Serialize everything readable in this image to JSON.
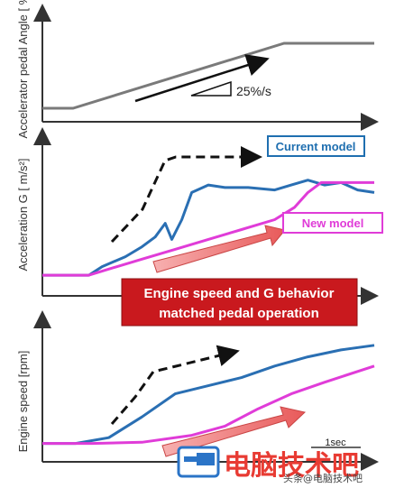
{
  "chart_data": [
    {
      "type": "line",
      "ylabel": "Accelerator pedal Angle [ % ]",
      "annotations": [
        {
          "text": "25%/s"
        }
      ],
      "series": [
        {
          "values": [
            [
              0,
              0
            ],
            [
              0.2,
              0
            ],
            [
              0.73,
              1
            ],
            [
              1,
              1
            ]
          ]
        }
      ]
    },
    {
      "type": "line",
      "ylabel": "Acceleration G [ m/s²]",
      "legend": [
        {
          "label": "Current model",
          "color": "#1f6fb0"
        },
        {
          "label": "New model",
          "color": "#e03cd8"
        }
      ],
      "series": [
        {
          "name": "Current model",
          "color": "#2a6fb3",
          "values": [
            [
              0,
              0.05
            ],
            [
              0.14,
              0.05
            ],
            [
              0.18,
              0.12
            ],
            [
              0.25,
              0.2
            ],
            [
              0.3,
              0.28
            ],
            [
              0.34,
              0.36
            ],
            [
              0.37,
              0.47
            ],
            [
              0.39,
              0.34
            ],
            [
              0.42,
              0.5
            ],
            [
              0.45,
              0.72
            ],
            [
              0.5,
              0.78
            ],
            [
              0.55,
              0.76
            ],
            [
              0.62,
              0.76
            ],
            [
              0.7,
              0.74
            ],
            [
              0.75,
              0.78
            ],
            [
              0.8,
              0.82
            ],
            [
              0.85,
              0.78
            ],
            [
              0.9,
              0.8
            ],
            [
              0.95,
              0.74
            ],
            [
              1,
              0.72
            ]
          ]
        },
        {
          "name": "New model",
          "color": "#e03cd8",
          "values": [
            [
              0,
              0.05
            ],
            [
              0.14,
              0.05
            ],
            [
              0.2,
              0.1
            ],
            [
              0.3,
              0.18
            ],
            [
              0.4,
              0.26
            ],
            [
              0.5,
              0.34
            ],
            [
              0.6,
              0.42
            ],
            [
              0.7,
              0.5
            ],
            [
              0.76,
              0.6
            ],
            [
              0.8,
              0.72
            ],
            [
              0.84,
              0.8
            ],
            [
              0.9,
              0.8
            ],
            [
              1,
              0.8
            ]
          ]
        }
      ]
    },
    {
      "type": "line",
      "ylabel": "Engine speed [rpm]",
      "annotations": [
        {
          "text": "1sec"
        }
      ],
      "series": [
        {
          "name": "Current model",
          "color": "#2a6fb3",
          "values": [
            [
              0,
              0.05
            ],
            [
              0.1,
              0.05
            ],
            [
              0.2,
              0.1
            ],
            [
              0.3,
              0.28
            ],
            [
              0.4,
              0.48
            ],
            [
              0.5,
              0.55
            ],
            [
              0.6,
              0.62
            ],
            [
              0.7,
              0.72
            ],
            [
              0.8,
              0.8
            ],
            [
              0.9,
              0.86
            ],
            [
              1,
              0.9
            ]
          ]
        },
        {
          "name": "New model",
          "color": "#e03cd8",
          "values": [
            [
              0,
              0.05
            ],
            [
              0.15,
              0.05
            ],
            [
              0.3,
              0.06
            ],
            [
              0.45,
              0.12
            ],
            [
              0.55,
              0.2
            ],
            [
              0.65,
              0.35
            ],
            [
              0.75,
              0.48
            ],
            [
              0.85,
              0.58
            ],
            [
              1,
              0.72
            ]
          ]
        }
      ]
    }
  ],
  "callout": {
    "line1": "Engine speed and G behavior",
    "line2": "matched pedal operation"
  },
  "watermark": {
    "text": "电脑技术吧",
    "small": "头条@电脑技术吧"
  }
}
